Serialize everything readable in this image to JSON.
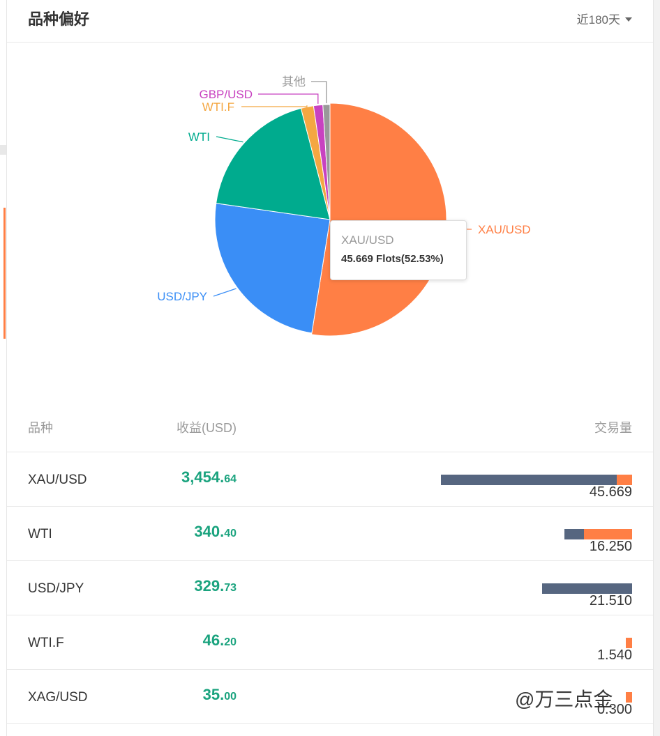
{
  "header": {
    "title": "品种偏好",
    "period": "近180天"
  },
  "chart_data": {
    "type": "pie",
    "slices": [
      {
        "label": "XAU/USD",
        "value": 52.53,
        "color": "#ff7f45"
      },
      {
        "label": "USD/JPY",
        "value": 24.73,
        "color": "#3a8ef6"
      },
      {
        "label": "WTI",
        "value": 18.68,
        "color": "#00ab8e"
      },
      {
        "label": "WTI.F",
        "value": 1.77,
        "color": "#f4a742"
      },
      {
        "label": "GBP/USD",
        "value": 1.3,
        "color": "#c842c0"
      },
      {
        "label": "其他",
        "value": 0.99,
        "color": "#999999"
      }
    ]
  },
  "tooltip": {
    "name": "XAU/USD",
    "value": "45.669 Flots(52.53%)"
  },
  "table": {
    "headers": {
      "symbol": "品种",
      "profit": "收益(USD)",
      "volume": "交易量"
    },
    "rows": [
      {
        "symbol": "XAU/USD",
        "profit_int": "3,454.",
        "profit_dec": "64",
        "volume": "45.669",
        "buy_share": 0.92,
        "sell_share": 0.08
      },
      {
        "symbol": "WTI",
        "profit_int": "340.",
        "profit_dec": "40",
        "volume": "16.250",
        "buy_share": 0.29,
        "sell_share": 0.71
      },
      {
        "symbol": "USD/JPY",
        "profit_int": "329.",
        "profit_dec": "73",
        "volume": "21.510",
        "buy_share": 1.0,
        "sell_share": 0.0
      },
      {
        "symbol": "WTI.F",
        "profit_int": "46.",
        "profit_dec": "20",
        "volume": "1.540",
        "buy_share": 0.0,
        "sell_share": 1.0
      },
      {
        "symbol": "XAG/USD",
        "profit_int": "35.",
        "profit_dec": "00",
        "volume": "0.300",
        "buy_share": 0.0,
        "sell_share": 1.0
      }
    ]
  },
  "watermark": "@万三点金"
}
